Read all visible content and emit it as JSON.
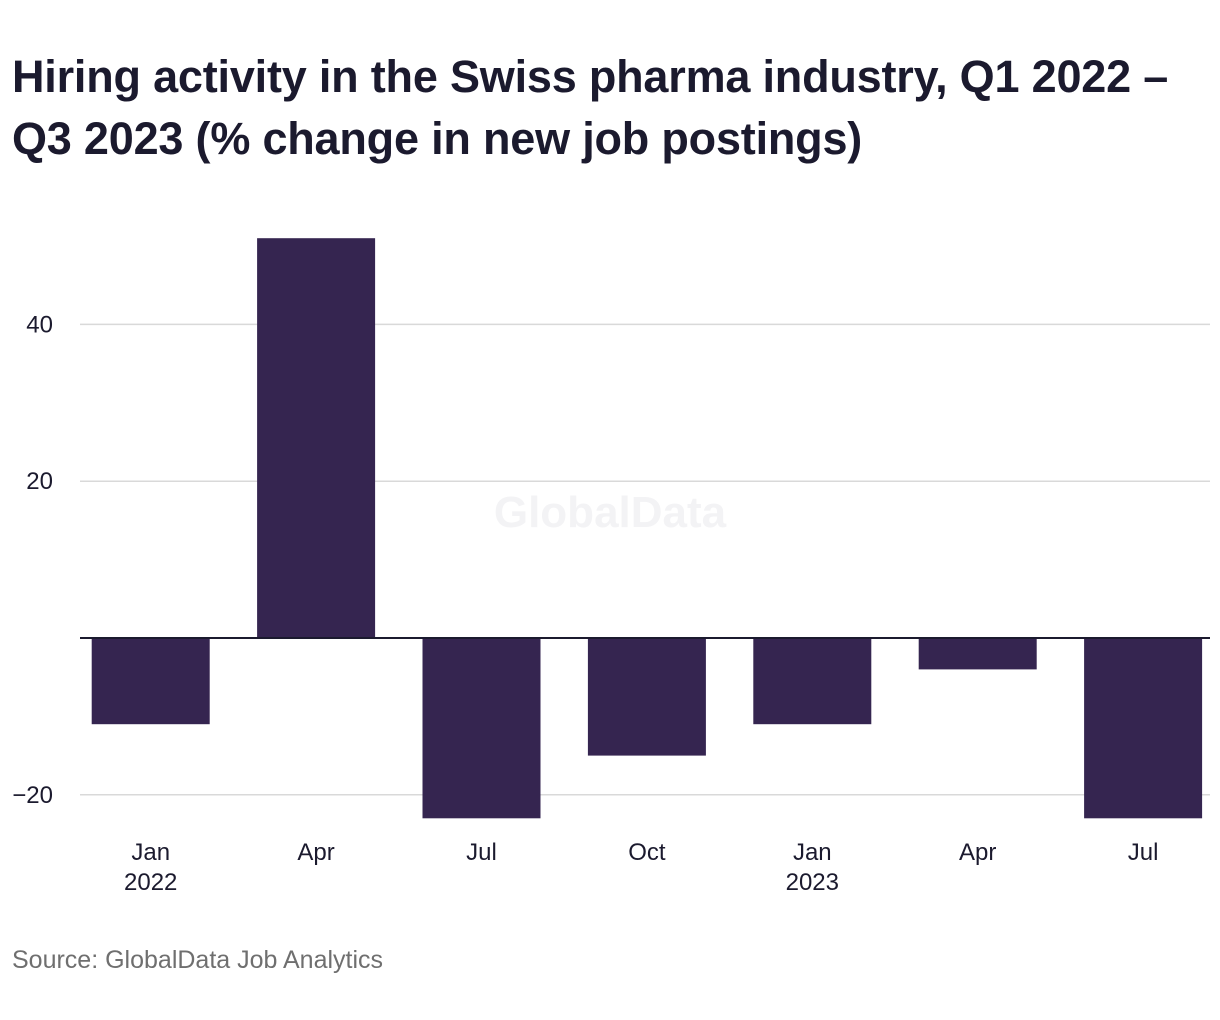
{
  "title": "Hiring activity in the Swiss pharma industry, Q1 2022 – Q3 2023 (% change in new job postings)",
  "source": "Source: GlobalData Job Analytics",
  "watermark": "GlobalData",
  "colors": {
    "bar": "#352550",
    "grid": "#d9d9d9",
    "zero_line": "#1b1a2e",
    "text": "#1b1a2e",
    "source_text": "#6f6f6f",
    "watermark": "#f3f3f5"
  },
  "chart_data": {
    "type": "bar",
    "title": "Hiring activity in the Swiss pharma industry, Q1 2022 – Q3 2023 (% change in new job postings)",
    "xlabel": "",
    "ylabel": "",
    "categories": [
      "Jan 2022",
      "Apr 2022",
      "Jul 2022",
      "Oct 2022",
      "Jan 2023",
      "Apr 2023",
      "Jul 2023"
    ],
    "x_tick_labels": [
      {
        "month": "Jan",
        "year": "2022"
      },
      {
        "month": "Apr",
        "year": ""
      },
      {
        "month": "Jul",
        "year": ""
      },
      {
        "month": "Oct",
        "year": ""
      },
      {
        "month": "Jan",
        "year": "2023"
      },
      {
        "month": "Apr",
        "year": ""
      },
      {
        "month": "Jul",
        "year": ""
      }
    ],
    "values": [
      -11,
      51,
      -23,
      -15,
      -11,
      -4,
      -23
    ],
    "ylim": [
      -23,
      51
    ],
    "y_ticks": [
      40,
      20,
      -20
    ],
    "y_tick_labels": [
      "40",
      "20",
      "−20"
    ],
    "grid": true,
    "legend": "none"
  }
}
